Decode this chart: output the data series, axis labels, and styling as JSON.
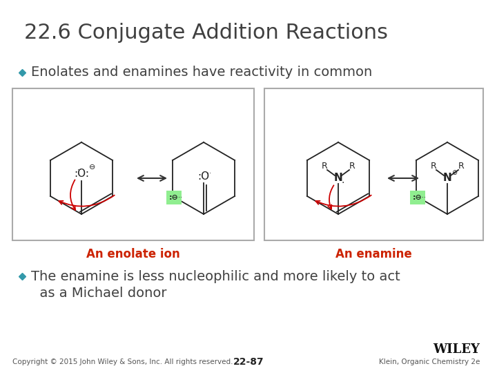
{
  "title": "22.6 Conjugate Addition Reactions",
  "title_color": "#404040",
  "title_fontsize": 22,
  "bullet1": "Enolates and enamines have reactivity in common",
  "bullet2_line1": "The enamine is less nucleophilic and more likely to act",
  "bullet2_line2": "  as a Michael donor",
  "bullet_color": "#404040",
  "bullet_fontsize": 14,
  "bullet_marker_color": "#3399AA",
  "label_enolate": "An enolate ion",
  "label_enamine": "An enamine",
  "label_color": "#CC2200",
  "label_fontsize": 12,
  "copyright": "Copyright © 2015 John Wiley & Sons, Inc. All rights reserved.",
  "page_num": "22-87",
  "ref": "Klein, Organic Chemistry 2e",
  "footer_fontsize": 7.5,
  "bg_color": "#FFFFFF",
  "lw": 1.3,
  "mol_color": "#222222",
  "arrow_red": "#CC0000",
  "green_box": "#90EE90",
  "bracket_color": "#888888"
}
